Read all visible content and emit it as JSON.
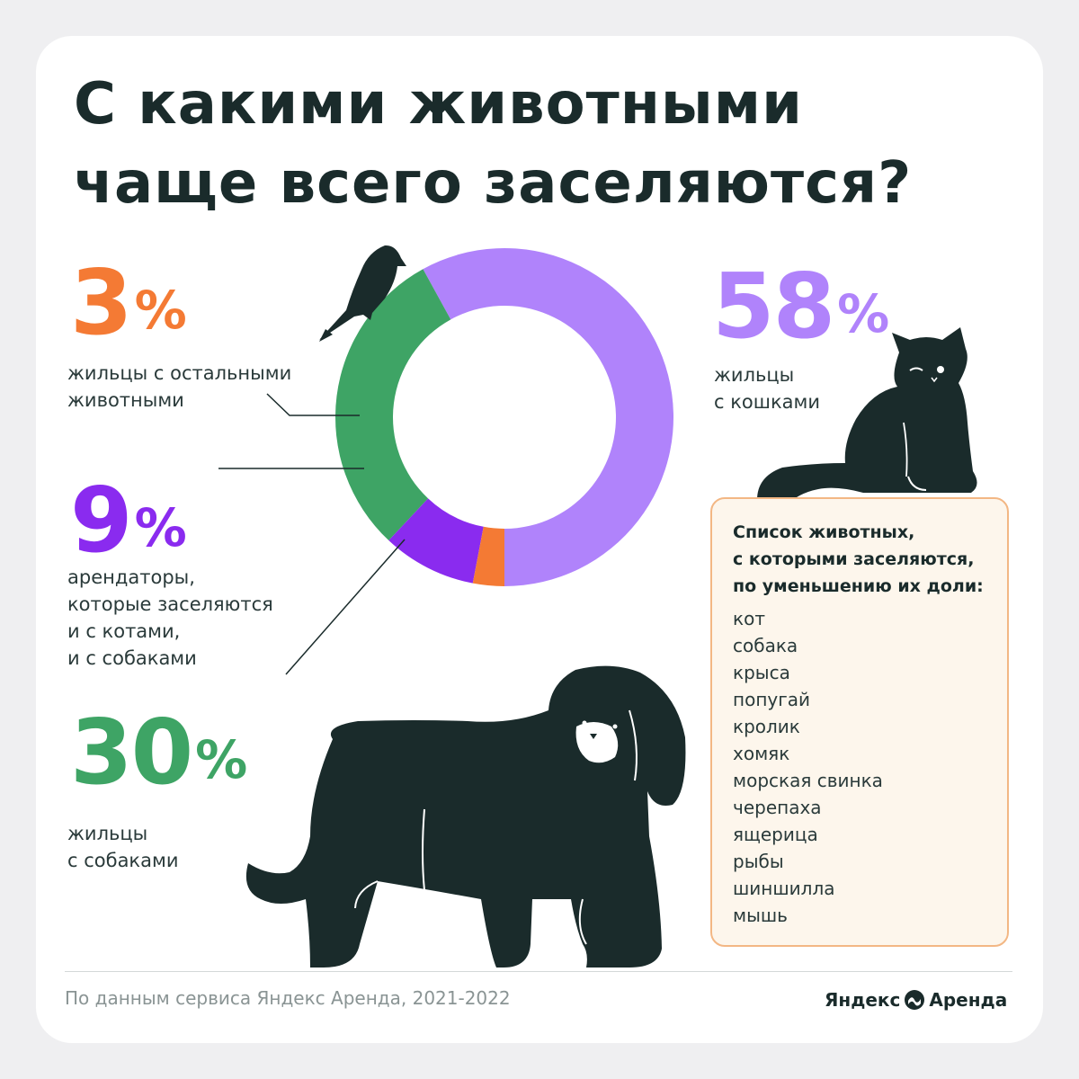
{
  "title": {
    "line1": "С какими животными",
    "line2": "чаще всего заселяются?"
  },
  "stats": {
    "cats": {
      "value": "58",
      "percent": "%",
      "caption": [
        "жильцы",
        "с кошками"
      ]
    },
    "other": {
      "value": "3",
      "percent": "%",
      "caption": [
        "жильцы с остальными",
        "животными"
      ]
    },
    "both": {
      "value": "9",
      "percent": "%",
      "caption": [
        "арендаторы,",
        "которые заселяются",
        "и с котами,",
        "и с собаками"
      ]
    },
    "dogs": {
      "value": "30",
      "percent": "%",
      "caption": [
        "жильцы",
        "с собаками"
      ]
    }
  },
  "list": {
    "title": [
      "Список животных,",
      "с которыми заселяются,",
      "по уменьшению их доли:"
    ],
    "items": [
      "кот",
      "собака",
      "крыса",
      "попугай",
      "кролик",
      "хомяк",
      "морская свинка",
      "черепаха",
      "ящерица",
      "рыбы",
      "шиншилла",
      "мышь"
    ]
  },
  "footer": {
    "source": "По данным сервиса Яндекс Аренда, 2021-2022",
    "brand_left": "Яндекс",
    "brand_right": "Аренда"
  },
  "colors": {
    "cats": "#b083fb",
    "dogs": "#3ea465",
    "both": "#8a2bef",
    "other": "#f47a34",
    "dark": "#1a2b2b",
    "list_bg": "#fdf6ec",
    "list_border": "#f3b784"
  },
  "icons": [
    "bird-icon",
    "cat-icon",
    "dog-icon",
    "yandex-arenda-logo-icon"
  ],
  "chart_data": {
    "type": "pie",
    "style": "donut",
    "title": "С какими животными чаще всего заселяются?",
    "categories": [
      "жильцы с кошками",
      "жильцы с собаками",
      "арендаторы, которые заселяются и с котами, и с собаками",
      "жильцы с остальными животными"
    ],
    "values": [
      58,
      30,
      9,
      3
    ],
    "unit": "%",
    "colors": [
      "#b083fb",
      "#3ea465",
      "#8a2bef",
      "#f47a34"
    ]
  }
}
